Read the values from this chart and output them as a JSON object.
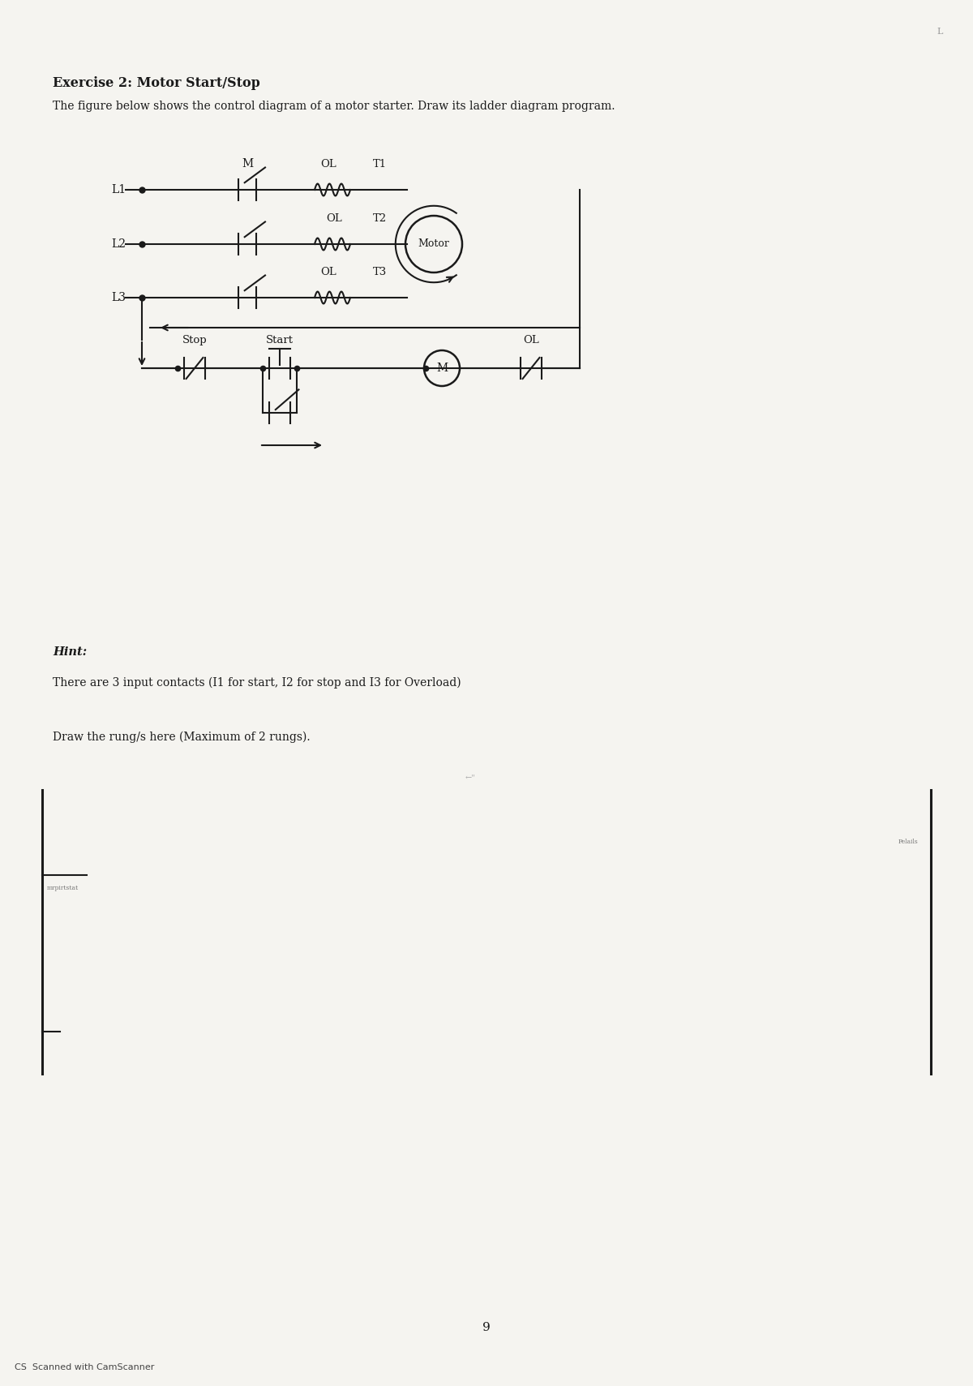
{
  "title": "Exercise 2: Motor Start/Stop",
  "subtitle": "The figure below shows the control diagram of a motor starter. Draw its ladder diagram program.",
  "hint_title": "Hint:",
  "hint_text": "There are 3 input contacts (I1 for start, I2 for stop and I3 for Overload)",
  "draw_text": "Draw the rung/s here (Maximum of 2 rungs).",
  "page_number": "9",
  "camscanner_text": "CS  Scanned with CamScanner",
  "bg_color": "#f5f4f0",
  "line_color": "#1a1a1a"
}
